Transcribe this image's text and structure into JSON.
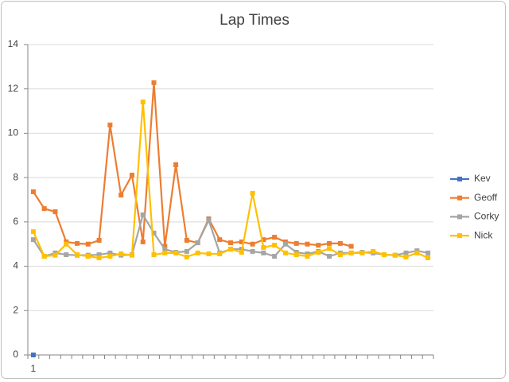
{
  "chart_data": {
    "type": "line",
    "title": "Lap Times",
    "categories": [
      "1",
      null,
      null,
      null,
      null,
      null,
      null,
      null,
      null,
      null,
      null,
      null,
      null,
      null,
      null,
      null,
      null,
      null,
      null,
      null,
      null,
      null,
      null,
      null,
      null,
      null,
      null,
      null,
      null,
      null,
      null,
      null,
      null,
      null,
      null,
      null,
      null
    ],
    "series": [
      {
        "name": "Kev",
        "color": "#4472c4",
        "values": [
          0,
          null,
          null,
          null,
          null,
          null,
          null,
          null,
          null,
          null,
          null,
          null,
          null,
          null,
          null,
          null,
          null,
          null,
          null,
          null,
          null,
          null,
          null,
          null,
          null,
          null,
          null,
          null,
          null,
          null,
          null,
          null,
          null,
          null,
          null,
          null,
          null
        ]
      },
      {
        "name": "Geoff",
        "color": "#ed7d31",
        "values": [
          7.36,
          6.6,
          6.46,
          5.1,
          5.03,
          5.0,
          5.17,
          10.37,
          7.21,
          8.11,
          5.1,
          12.28,
          4.9,
          8.58,
          5.17,
          5.06,
          6.14,
          5.2,
          5.06,
          5.1,
          5.0,
          5.2,
          5.31,
          5.1,
          5.03,
          5.0,
          4.95,
          5.03,
          5.03,
          4.9,
          null,
          null,
          null,
          null,
          null,
          null,
          null
        ]
      },
      {
        "name": "Corky",
        "color": "#a5a5a5",
        "values": [
          5.2,
          4.45,
          4.6,
          4.52,
          4.5,
          4.5,
          4.52,
          4.6,
          4.5,
          4.52,
          6.32,
          5.5,
          4.77,
          4.63,
          4.67,
          5.06,
          6.07,
          4.6,
          4.77,
          4.77,
          4.67,
          4.6,
          4.45,
          5.0,
          4.63,
          4.56,
          4.67,
          4.45,
          4.6,
          4.6,
          4.63,
          4.6,
          4.52,
          4.5,
          4.6,
          4.7,
          4.6
        ]
      },
      {
        "name": "Nick",
        "color": "#ffc000",
        "values": [
          5.56,
          4.45,
          4.5,
          5.0,
          4.52,
          4.45,
          4.38,
          4.45,
          4.56,
          4.5,
          11.41,
          4.52,
          4.6,
          4.6,
          4.42,
          4.6,
          4.56,
          4.56,
          4.77,
          4.63,
          7.29,
          4.85,
          4.95,
          4.6,
          4.52,
          4.45,
          4.63,
          4.8,
          4.52,
          4.6,
          4.6,
          4.67,
          4.52,
          4.5,
          4.42,
          4.6,
          4.38
        ]
      }
    ],
    "ylim": [
      0,
      14
    ],
    "yticks": [
      0,
      2,
      4,
      6,
      8,
      10,
      12,
      14
    ],
    "grid": true,
    "legend": "right"
  }
}
